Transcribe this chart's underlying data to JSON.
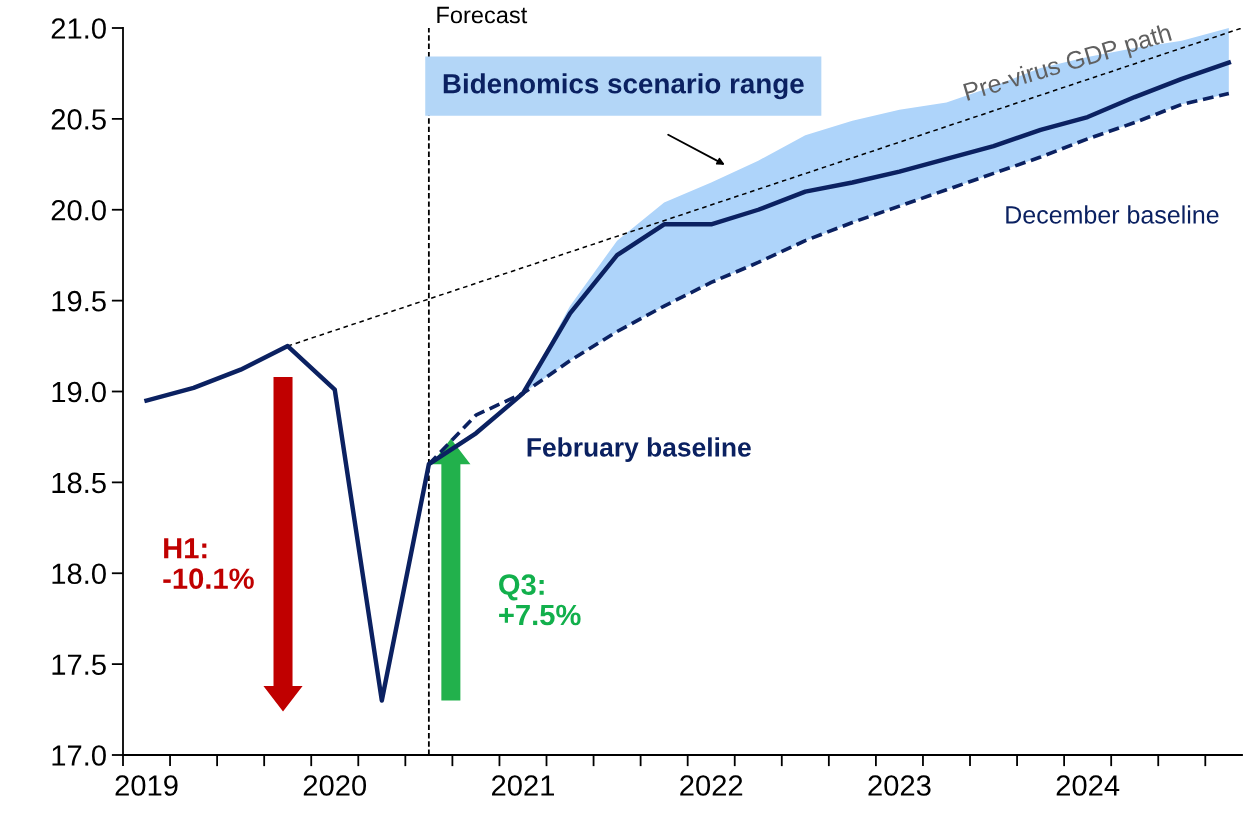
{
  "chart_data": {
    "type": "line",
    "x": [
      2019.0,
      2019.25,
      2019.5,
      2019.75,
      2020.0,
      2020.25,
      2020.5,
      2020.75,
      2021.0,
      2021.25,
      2021.5,
      2021.75,
      2022.0,
      2022.25,
      2022.5,
      2022.75,
      2023.0,
      2023.25,
      2023.5,
      2023.75,
      2024.0,
      2024.25,
      2024.5,
      2024.75
    ],
    "series": [
      {
        "name": "February baseline",
        "color": "#0b2161",
        "line_style": "solid",
        "values": [
          18.95,
          19.02,
          19.12,
          19.25,
          19.01,
          17.3,
          18.6,
          18.77,
          18.99,
          19.43,
          19.75,
          19.92,
          19.92,
          20.0,
          20.1,
          20.15,
          20.21,
          20.28,
          20.35,
          20.44,
          20.51,
          20.62,
          20.72,
          20.81
        ],
        "lower": [
          null,
          null,
          null,
          null,
          null,
          null,
          null,
          null,
          18.99,
          19.17,
          19.33,
          19.47,
          19.6,
          19.71,
          19.83,
          19.93,
          20.02,
          20.11,
          20.2,
          20.29,
          20.39,
          20.48,
          20.58,
          20.64
        ],
        "upper": [
          null,
          null,
          null,
          null,
          null,
          null,
          null,
          null,
          18.99,
          19.47,
          19.83,
          20.04,
          20.15,
          20.27,
          20.41,
          20.49,
          20.55,
          20.59,
          20.68,
          20.78,
          20.84,
          20.89,
          20.93,
          21.0
        ]
      },
      {
        "name": "December baseline",
        "color": "#0b2161",
        "line_style": "dashed",
        "x": [
          2020.5,
          2020.75,
          2021.0,
          2021.25,
          2021.5,
          2021.75,
          2022.0,
          2022.25,
          2022.5,
          2022.75,
          2023.0,
          2023.25,
          2023.5,
          2023.75,
          2024.0,
          2024.25,
          2024.5,
          2024.75
        ],
        "values": [
          18.6,
          18.87,
          18.99,
          19.17,
          19.33,
          19.47,
          19.6,
          19.71,
          19.83,
          19.93,
          20.02,
          20.11,
          20.2,
          20.29,
          20.39,
          20.48,
          20.58,
          20.64
        ]
      },
      {
        "name": "Pre-virus GDP path",
        "color": "#000000",
        "line_style": "dotted",
        "x": [
          2019.75,
          2024.82
        ],
        "values": [
          19.25,
          21.0
        ]
      }
    ],
    "ref_lines": [
      {
        "axis": "x",
        "value": 2020.5,
        "label": "Forecast",
        "color": "#000000",
        "line_style": "dashed"
      }
    ],
    "annotations": [
      "Bidenomics scenario range",
      "H1:\n-10.1%",
      "Q3:\n+7.5%"
    ],
    "xlim": [
      2018.875,
      2024.82
    ],
    "xticks": [
      {
        "value": 2018.875,
        "label": null
      },
      {
        "value": 2019.125,
        "label": null
      },
      {
        "value": 2019.375,
        "label": null
      },
      {
        "value": 2019.625,
        "label": null
      },
      {
        "value": 2019.875,
        "label": null
      },
      {
        "value": 2020.125,
        "label": null
      },
      {
        "value": 2020.375,
        "label": null
      },
      {
        "value": 2020.625,
        "label": null
      },
      {
        "value": 2020.875,
        "label": null
      },
      {
        "value": 2021.125,
        "label": null
      },
      {
        "value": 2021.375,
        "label": null
      },
      {
        "value": 2021.625,
        "label": null
      },
      {
        "value": 2021.875,
        "label": null
      },
      {
        "value": 2022.125,
        "label": null
      },
      {
        "value": 2022.375,
        "label": null
      },
      {
        "value": 2022.625,
        "label": null
      },
      {
        "value": 2022.875,
        "label": null
      },
      {
        "value": 2023.125,
        "label": null
      },
      {
        "value": 2023.375,
        "label": null
      },
      {
        "value": 2023.625,
        "label": null
      },
      {
        "value": 2023.875,
        "label": null
      },
      {
        "value": 2024.125,
        "label": null
      },
      {
        "value": 2024.375,
        "label": null
      },
      {
        "value": 2024.625,
        "label": null
      },
      {
        "value": 2019,
        "label": "2019"
      },
      {
        "value": 2020,
        "label": "2020"
      },
      {
        "value": 2021,
        "label": "2021"
      },
      {
        "value": 2022,
        "label": "2022"
      },
      {
        "value": 2023,
        "label": "2023"
      },
      {
        "value": 2024,
        "label": "2024"
      }
    ],
    "ylim": [
      17.0,
      21.0
    ],
    "yticks": [
      {
        "value": 17.0,
        "label": "17.0"
      },
      {
        "value": 17.5,
        "label": "17.5"
      },
      {
        "value": 18.0,
        "label": "18.0"
      },
      {
        "value": 18.5,
        "label": "18.5"
      },
      {
        "value": 19.0,
        "label": "19.0"
      },
      {
        "value": 19.5,
        "label": "19.5"
      },
      {
        "value": 20.0,
        "label": "20.0"
      },
      {
        "value": 20.5,
        "label": "20.5"
      },
      {
        "value": 21.0,
        "label": "21.0"
      }
    ],
    "grid": false,
    "legend": false
  }
}
